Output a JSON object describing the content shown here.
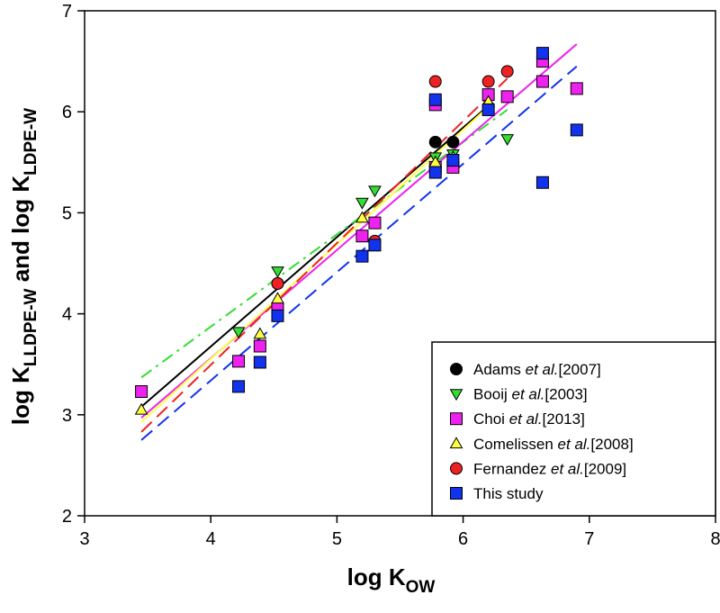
{
  "chart_data": {
    "type": "scatter",
    "xlabel": {
      "main": "log K",
      "sub": "OW"
    },
    "ylabel": {
      "parts": [
        {
          "text": "log K",
          "sub": false
        },
        {
          "text": "LLDPE-W",
          "sub": true
        },
        {
          "text": " and log K",
          "sub": false
        },
        {
          "text": "LDPE-W",
          "sub": true
        }
      ]
    },
    "xlim": [
      3,
      8
    ],
    "ylim": [
      2,
      7
    ],
    "xticks": [
      3,
      4,
      5,
      6,
      7,
      8
    ],
    "yticks": [
      2,
      3,
      4,
      5,
      6,
      7
    ],
    "grid": false,
    "legend_position": "bottom-right",
    "series": [
      {
        "key": "adams",
        "legend": {
          "prefix": "Adams ",
          "etal": "et al.",
          "suffix": "[2007]"
        },
        "marker": "circle",
        "color": "#000000",
        "line_style": "solid",
        "x": [
          4.53,
          5.3,
          5.78,
          5.92,
          6.2
        ],
        "y": [
          4.3,
          4.7,
          5.7,
          5.7,
          6.05
        ],
        "fit": {
          "x": [
            3.45,
            6.2
          ],
          "y": [
            3.08,
            6.06
          ]
        }
      },
      {
        "key": "booij",
        "legend": {
          "prefix": "Booij ",
          "etal": "et al.",
          "suffix": "[2003]"
        },
        "marker": "triangle-down",
        "color": "#33dd33",
        "line_style": "dashdot",
        "x": [
          4.22,
          4.53,
          5.2,
          5.3,
          5.78,
          5.92,
          6.35
        ],
        "y": [
          3.82,
          4.42,
          5.1,
          5.22,
          5.55,
          5.58,
          5.73
        ],
        "fit": {
          "x": [
            3.45,
            6.35
          ],
          "y": [
            3.37,
            6.02
          ]
        }
      },
      {
        "key": "choi",
        "legend": {
          "prefix": "Choi ",
          "etal": "et al.",
          "suffix": "[2013]"
        },
        "marker": "square",
        "color": "#ee22ee",
        "line_style": "solid",
        "x": [
          3.45,
          4.22,
          4.39,
          4.53,
          5.2,
          5.3,
          5.78,
          5.78,
          5.92,
          6.2,
          6.35,
          6.63,
          6.63,
          6.9
        ],
        "y": [
          3.23,
          3.53,
          3.68,
          4.05,
          4.77,
          4.9,
          6.07,
          5.45,
          5.45,
          6.17,
          6.15,
          6.5,
          6.3,
          6.23
        ],
        "fit": {
          "x": [
            3.45,
            6.9
          ],
          "y": [
            2.97,
            6.67
          ]
        }
      },
      {
        "key": "cornelissen",
        "legend": {
          "prefix": "Comelissen ",
          "etal": "et al.",
          "suffix": "[2008]"
        },
        "marker": "triangle-up",
        "color": "#ffff44",
        "line_style": "solid",
        "x": [
          3.45,
          4.39,
          4.53,
          5.2,
          5.78,
          5.92,
          6.2
        ],
        "y": [
          3.05,
          3.8,
          4.15,
          4.95,
          5.5,
          5.55,
          6.1
        ],
        "fit": {
          "x": [
            3.45,
            6.2
          ],
          "y": [
            2.93,
            6.05
          ]
        }
      },
      {
        "key": "fernandez",
        "legend": {
          "prefix": "Fernandez ",
          "etal": "et al.",
          "suffix": "[2009]"
        },
        "marker": "circle",
        "color": "#ee2222",
        "line_style": "dashed",
        "x": [
          4.53,
          5.3,
          5.78,
          6.2,
          6.35
        ],
        "y": [
          4.3,
          4.72,
          6.3,
          6.3,
          6.4
        ],
        "fit": {
          "x": [
            3.45,
            6.35
          ],
          "y": [
            2.83,
            6.33
          ]
        }
      },
      {
        "key": "this_study",
        "legend": {
          "prefix": "This study",
          "etal": "",
          "suffix": ""
        },
        "marker": "square",
        "color": "#1133ee",
        "line_style": "dashed",
        "x": [
          4.22,
          4.39,
          4.53,
          5.2,
          5.3,
          5.78,
          5.78,
          5.92,
          6.2,
          6.63,
          6.63,
          6.9
        ],
        "y": [
          3.28,
          3.52,
          3.98,
          4.57,
          4.68,
          6.12,
          5.4,
          5.52,
          6.02,
          6.58,
          5.3,
          5.82
        ],
        "fit": {
          "x": [
            3.45,
            6.9
          ],
          "y": [
            2.75,
            6.45
          ]
        }
      }
    ]
  }
}
